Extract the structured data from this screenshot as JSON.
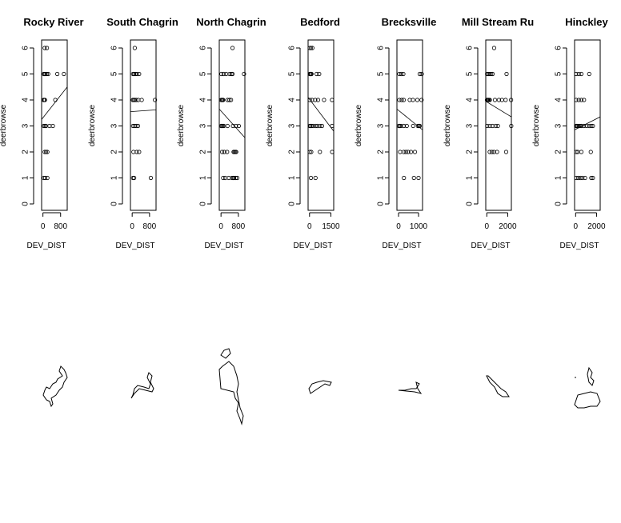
{
  "chart_data": {
    "type": "scatter",
    "ylabel": "deerbrowse",
    "xlabel": "DEV_DIST",
    "ylim": [
      0,
      6
    ],
    "yticks": [
      0,
      1,
      2,
      3,
      4,
      5,
      6
    ],
    "grid": false,
    "legend": "none",
    "panels": [
      {
        "title": "Rocky River",
        "xlim": [
          -60,
          1100
        ],
        "xticks": [
          0,
          800
        ],
        "xticklabels": [
          "0",
          "800"
        ],
        "fit_line": [
          [
            -60,
            3.25
          ],
          [
            1100,
            4.5
          ]
        ],
        "points": [
          [
            80,
            6
          ],
          [
            180,
            6
          ],
          [
            40,
            5
          ],
          [
            80,
            5
          ],
          [
            120,
            5
          ],
          [
            180,
            5
          ],
          [
            240,
            5
          ],
          [
            650,
            5
          ],
          [
            950,
            5
          ],
          [
            30,
            4
          ],
          [
            60,
            4
          ],
          [
            90,
            4
          ],
          [
            560,
            4
          ],
          [
            40,
            3
          ],
          [
            90,
            3
          ],
          [
            140,
            3
          ],
          [
            300,
            3
          ],
          [
            450,
            3
          ],
          [
            80,
            2
          ],
          [
            140,
            2
          ],
          [
            200,
            2
          ],
          [
            40,
            1
          ],
          [
            100,
            1
          ],
          [
            200,
            1
          ]
        ]
      },
      {
        "title": "South Chagrin",
        "xlim": [
          -80,
          1100
        ],
        "xticks": [
          0,
          800
        ],
        "xticklabels": [
          "0",
          "800"
        ],
        "fit_line": [
          [
            -80,
            3.55
          ],
          [
            1100,
            3.62
          ]
        ],
        "points": [
          [
            120,
            6
          ],
          [
            40,
            5
          ],
          [
            90,
            5
          ],
          [
            150,
            5
          ],
          [
            220,
            5
          ],
          [
            320,
            5
          ],
          [
            30,
            4
          ],
          [
            70,
            4
          ],
          [
            110,
            4
          ],
          [
            180,
            4
          ],
          [
            280,
            4
          ],
          [
            440,
            4
          ],
          [
            1050,
            4
          ],
          [
            40,
            3
          ],
          [
            110,
            3
          ],
          [
            190,
            3
          ],
          [
            270,
            3
          ],
          [
            60,
            2
          ],
          [
            210,
            2
          ],
          [
            320,
            2
          ],
          [
            40,
            1
          ],
          [
            90,
            1
          ],
          [
            860,
            1
          ]
        ]
      },
      {
        "title": "North Chagrin",
        "xlim": [
          -80,
          1100
        ],
        "xticks": [
          0,
          800
        ],
        "xticklabels": [
          "0",
          "800"
        ],
        "fit_line": [
          [
            -80,
            3.65
          ],
          [
            1100,
            2.55
          ]
        ],
        "points": [
          [
            530,
            6
          ],
          [
            20,
            5
          ],
          [
            120,
            5
          ],
          [
            240,
            5
          ],
          [
            400,
            5
          ],
          [
            480,
            5
          ],
          [
            530,
            5
          ],
          [
            1060,
            5
          ],
          [
            10,
            4
          ],
          [
            40,
            4
          ],
          [
            70,
            4
          ],
          [
            100,
            4
          ],
          [
            300,
            4
          ],
          [
            390,
            4
          ],
          [
            460,
            4
          ],
          [
            10,
            3
          ],
          [
            40,
            3
          ],
          [
            80,
            3
          ],
          [
            130,
            3
          ],
          [
            300,
            3
          ],
          [
            550,
            3
          ],
          [
            690,
            3
          ],
          [
            820,
            3
          ],
          [
            50,
            2
          ],
          [
            150,
            2
          ],
          [
            280,
            2
          ],
          [
            580,
            2
          ],
          [
            620,
            2
          ],
          [
            660,
            2
          ],
          [
            700,
            2
          ],
          [
            100,
            1
          ],
          [
            200,
            1
          ],
          [
            360,
            1
          ],
          [
            510,
            1
          ],
          [
            560,
            1
          ],
          [
            600,
            1
          ],
          [
            680,
            1
          ],
          [
            750,
            1
          ]
        ]
      },
      {
        "title": "Bedford",
        "xlim": [
          -100,
          1700
        ],
        "xticks": [
          0,
          1500
        ],
        "xticklabels": [
          "0",
          "1500"
        ],
        "fit_line": [
          [
            -100,
            4.1
          ],
          [
            1700,
            2.8
          ]
        ],
        "points": [
          [
            20,
            6
          ],
          [
            100,
            6
          ],
          [
            200,
            6
          ],
          [
            20,
            5
          ],
          [
            60,
            5
          ],
          [
            100,
            5
          ],
          [
            140,
            5
          ],
          [
            500,
            5
          ],
          [
            680,
            5
          ],
          [
            20,
            4
          ],
          [
            180,
            4
          ],
          [
            400,
            4
          ],
          [
            600,
            4
          ],
          [
            1020,
            4
          ],
          [
            1580,
            4
          ],
          [
            20,
            3
          ],
          [
            60,
            3
          ],
          [
            140,
            3
          ],
          [
            250,
            3
          ],
          [
            420,
            3
          ],
          [
            560,
            3
          ],
          [
            740,
            3
          ],
          [
            880,
            3
          ],
          [
            1580,
            3
          ],
          [
            20,
            2
          ],
          [
            120,
            2
          ],
          [
            730,
            2
          ],
          [
            1590,
            2
          ],
          [
            100,
            1
          ],
          [
            420,
            1
          ]
        ]
      },
      {
        "title": "Brecksville",
        "xlim": [
          -80,
          1200
        ],
        "xticks": [
          0,
          1000
        ],
        "xticklabels": [
          "0",
          "1000"
        ],
        "fit_line": [
          [
            -80,
            3.65
          ],
          [
            1200,
            2.85
          ]
        ],
        "points": [
          [
            40,
            5
          ],
          [
            140,
            5
          ],
          [
            240,
            5
          ],
          [
            1060,
            5
          ],
          [
            1160,
            5
          ],
          [
            40,
            4
          ],
          [
            160,
            4
          ],
          [
            260,
            4
          ],
          [
            560,
            4
          ],
          [
            720,
            4
          ],
          [
            940,
            4
          ],
          [
            1150,
            4
          ],
          [
            20,
            3
          ],
          [
            60,
            3
          ],
          [
            120,
            3
          ],
          [
            260,
            3
          ],
          [
            410,
            3
          ],
          [
            730,
            3
          ],
          [
            970,
            3
          ],
          [
            1020,
            3
          ],
          [
            1060,
            3
          ],
          [
            80,
            2
          ],
          [
            260,
            2
          ],
          [
            370,
            2
          ],
          [
            480,
            2
          ],
          [
            620,
            2
          ],
          [
            820,
            2
          ],
          [
            270,
            1
          ],
          [
            770,
            1
          ],
          [
            1000,
            1
          ]
        ]
      },
      {
        "title": "Mill Stream Ru",
        "xlim": [
          -100,
          2350
        ],
        "xticks": [
          0,
          2000
        ],
        "xticklabels": [
          "0",
          "2000"
        ],
        "fit_line": [
          [
            -100,
            3.95
          ],
          [
            2350,
            3.35
          ]
        ],
        "points": [
          [
            700,
            6
          ],
          [
            30,
            5
          ],
          [
            150,
            5
          ],
          [
            280,
            5
          ],
          [
            420,
            5
          ],
          [
            560,
            5
          ],
          [
            1890,
            5
          ],
          [
            20,
            4
          ],
          [
            60,
            4
          ],
          [
            100,
            4
          ],
          [
            150,
            4
          ],
          [
            200,
            4
          ],
          [
            290,
            4
          ],
          [
            780,
            4
          ],
          [
            1160,
            4
          ],
          [
            1450,
            4
          ],
          [
            1800,
            4
          ],
          [
            2320,
            4
          ],
          [
            40,
            3
          ],
          [
            280,
            3
          ],
          [
            540,
            3
          ],
          [
            840,
            3
          ],
          [
            1060,
            3
          ],
          [
            2340,
            3
          ],
          [
            280,
            2
          ],
          [
            490,
            2
          ],
          [
            690,
            2
          ],
          [
            980,
            2
          ],
          [
            1850,
            2
          ]
        ]
      },
      {
        "title": "Hinckley",
        "xlim": [
          -100,
          2350
        ],
        "xticks": [
          0,
          2000
        ],
        "xticklabels": [
          "0",
          "2000"
        ],
        "fit_line": [
          [
            -100,
            2.85
          ],
          [
            2350,
            3.35
          ]
        ],
        "points": [
          [
            50,
            5
          ],
          [
            300,
            5
          ],
          [
            550,
            5
          ],
          [
            1300,
            5
          ],
          [
            50,
            4
          ],
          [
            300,
            4
          ],
          [
            550,
            4
          ],
          [
            800,
            4
          ],
          [
            50,
            3
          ],
          [
            120,
            3
          ],
          [
            200,
            3
          ],
          [
            300,
            3
          ],
          [
            420,
            3
          ],
          [
            560,
            3
          ],
          [
            800,
            3
          ],
          [
            1050,
            3
          ],
          [
            1300,
            3
          ],
          [
            1500,
            3
          ],
          [
            1650,
            3
          ],
          [
            60,
            2
          ],
          [
            200,
            2
          ],
          [
            550,
            2
          ],
          [
            1450,
            2
          ],
          [
            60,
            1
          ],
          [
            250,
            1
          ],
          [
            450,
            1
          ],
          [
            650,
            1
          ],
          [
            900,
            1
          ],
          [
            1500,
            1
          ],
          [
            1650,
            1
          ]
        ]
      }
    ]
  }
}
